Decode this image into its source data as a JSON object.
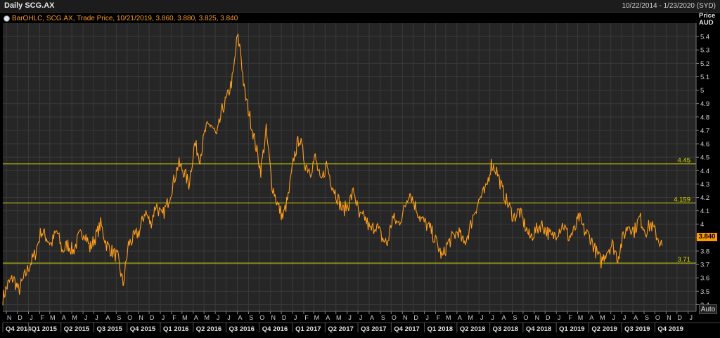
{
  "window": {
    "title": "Daily SCG.AX",
    "date_range": "10/22/2014 - 1/23/2020 (SYD)"
  },
  "legend": {
    "text": "BarOHLC, SCG.AX, Trade Price, 10/21/2019, 3.860, 3.880, 3.825, 3.840"
  },
  "axis": {
    "y_title_line1": "Price",
    "y_title_line2": "AUD",
    "auto_label": "Auto"
  },
  "last_price_label": "3.840",
  "colors": {
    "background": "#000000",
    "plot_background": "#262626",
    "grid": "#3a3a3a",
    "price_line": "#ff9d1a",
    "level_line": "#d6d600",
    "badge": "#ff9900"
  },
  "chart_data": {
    "type": "line",
    "series_name": "SCG.AX",
    "ylim": [
      3.35,
      5.5
    ],
    "y_ticks": [
      3.4,
      3.5,
      3.6,
      3.7,
      3.8,
      3.9,
      4,
      4.1,
      4.2,
      4.3,
      4.4,
      4.5,
      4.6,
      4.7,
      4.8,
      4.9,
      5,
      5.1,
      5.2,
      5.3,
      5.4
    ],
    "y_tick_labels": [
      "3.4",
      "3.5",
      "3.6",
      "3.7",
      "3.8",
      "3.9",
      "4",
      "4.1",
      "4.2",
      "4.3",
      "4.4",
      "4.5",
      "4.6",
      "4.7",
      "4.8",
      "4.9",
      "5",
      "5.1",
      "5.2",
      "5.3",
      "5.4"
    ],
    "grid": true,
    "x_range": [
      "2014-10-22",
      "2020-01-23"
    ],
    "month_ticks": [
      {
        "date": "2014-11-01",
        "label": "N"
      },
      {
        "date": "2014-12-01",
        "label": "D"
      },
      {
        "date": "2015-01-01",
        "label": "J"
      },
      {
        "date": "2015-02-01",
        "label": "F"
      },
      {
        "date": "2015-03-01",
        "label": "M"
      },
      {
        "date": "2015-04-01",
        "label": "A"
      },
      {
        "date": "2015-05-01",
        "label": "M"
      },
      {
        "date": "2015-06-01",
        "label": "J"
      },
      {
        "date": "2015-07-01",
        "label": "J"
      },
      {
        "date": "2015-08-01",
        "label": "A"
      },
      {
        "date": "2015-09-01",
        "label": "S"
      },
      {
        "date": "2015-10-01",
        "label": "O"
      },
      {
        "date": "2015-11-01",
        "label": "N"
      },
      {
        "date": "2015-12-01",
        "label": "D"
      },
      {
        "date": "2016-01-01",
        "label": "J"
      },
      {
        "date": "2016-02-01",
        "label": "F"
      },
      {
        "date": "2016-03-01",
        "label": "M"
      },
      {
        "date": "2016-04-01",
        "label": "A"
      },
      {
        "date": "2016-05-01",
        "label": "M"
      },
      {
        "date": "2016-06-01",
        "label": "J"
      },
      {
        "date": "2016-07-01",
        "label": "J"
      },
      {
        "date": "2016-08-01",
        "label": "A"
      },
      {
        "date": "2016-09-01",
        "label": "S"
      },
      {
        "date": "2016-10-01",
        "label": "O"
      },
      {
        "date": "2016-11-01",
        "label": "N"
      },
      {
        "date": "2016-12-01",
        "label": "D"
      },
      {
        "date": "2017-01-01",
        "label": "J"
      },
      {
        "date": "2017-02-01",
        "label": "F"
      },
      {
        "date": "2017-03-01",
        "label": "M"
      },
      {
        "date": "2017-04-01",
        "label": "A"
      },
      {
        "date": "2017-05-01",
        "label": "M"
      },
      {
        "date": "2017-06-01",
        "label": "J"
      },
      {
        "date": "2017-07-01",
        "label": "J"
      },
      {
        "date": "2017-08-01",
        "label": "A"
      },
      {
        "date": "2017-09-01",
        "label": "S"
      },
      {
        "date": "2017-10-01",
        "label": "O"
      },
      {
        "date": "2017-11-01",
        "label": "N"
      },
      {
        "date": "2017-12-01",
        "label": "D"
      },
      {
        "date": "2018-01-01",
        "label": "J"
      },
      {
        "date": "2018-02-01",
        "label": "F"
      },
      {
        "date": "2018-03-01",
        "label": "M"
      },
      {
        "date": "2018-04-01",
        "label": "A"
      },
      {
        "date": "2018-05-01",
        "label": "M"
      },
      {
        "date": "2018-06-01",
        "label": "J"
      },
      {
        "date": "2018-07-01",
        "label": "J"
      },
      {
        "date": "2018-08-01",
        "label": "A"
      },
      {
        "date": "2018-09-01",
        "label": "S"
      },
      {
        "date": "2018-10-01",
        "label": "O"
      },
      {
        "date": "2018-11-01",
        "label": "N"
      },
      {
        "date": "2018-12-01",
        "label": "D"
      },
      {
        "date": "2019-01-01",
        "label": "J"
      },
      {
        "date": "2019-02-01",
        "label": "F"
      },
      {
        "date": "2019-03-01",
        "label": "M"
      },
      {
        "date": "2019-04-01",
        "label": "A"
      },
      {
        "date": "2019-05-01",
        "label": "M"
      },
      {
        "date": "2019-06-01",
        "label": "J"
      },
      {
        "date": "2019-07-01",
        "label": "J"
      },
      {
        "date": "2019-08-01",
        "label": "A"
      },
      {
        "date": "2019-09-01",
        "label": "S"
      },
      {
        "date": "2019-10-01",
        "label": "O"
      },
      {
        "date": "2019-11-01",
        "label": "N"
      },
      {
        "date": "2019-12-01",
        "label": "D"
      },
      {
        "date": "2020-01-01",
        "label": "J"
      }
    ],
    "quarter_ticks": [
      {
        "date": "2014-10-22",
        "label": "Q4 2014"
      },
      {
        "date": "2015-01-01",
        "label": "Q1 2015"
      },
      {
        "date": "2015-04-01",
        "label": "Q2 2015"
      },
      {
        "date": "2015-07-01",
        "label": "Q3 2015"
      },
      {
        "date": "2015-10-01",
        "label": "Q4 2015"
      },
      {
        "date": "2016-01-01",
        "label": "Q1 2016"
      },
      {
        "date": "2016-04-01",
        "label": "Q2 2016"
      },
      {
        "date": "2016-07-01",
        "label": "Q3 2016"
      },
      {
        "date": "2016-10-01",
        "label": "Q4 2016"
      },
      {
        "date": "2017-01-01",
        "label": "Q1 2017"
      },
      {
        "date": "2017-04-01",
        "label": "Q2 2017"
      },
      {
        "date": "2017-07-01",
        "label": "Q3 2017"
      },
      {
        "date": "2017-10-01",
        "label": "Q4 2017"
      },
      {
        "date": "2018-01-01",
        "label": "Q1 2018"
      },
      {
        "date": "2018-04-01",
        "label": "Q2 2018"
      },
      {
        "date": "2018-07-01",
        "label": "Q3 2018"
      },
      {
        "date": "2018-10-01",
        "label": "Q4 2018"
      },
      {
        "date": "2019-01-01",
        "label": "Q1 2019"
      },
      {
        "date": "2019-04-01",
        "label": "Q2 2019"
      },
      {
        "date": "2019-07-01",
        "label": "Q3 2019"
      },
      {
        "date": "2019-10-01",
        "label": "Q4 2019"
      }
    ],
    "horizontal_levels": [
      {
        "value": 4.45,
        "label": "4.45"
      },
      {
        "value": 4.159,
        "label": "4.159"
      },
      {
        "value": 3.71,
        "label": "3.71"
      }
    ],
    "x": [
      "2014-10-22",
      "2014-11-05",
      "2014-11-20",
      "2014-12-05",
      "2014-12-20",
      "2015-01-05",
      "2015-01-20",
      "2015-02-05",
      "2015-02-20",
      "2015-03-05",
      "2015-03-20",
      "2015-04-05",
      "2015-04-20",
      "2015-05-05",
      "2015-05-20",
      "2015-06-05",
      "2015-06-20",
      "2015-07-05",
      "2015-07-20",
      "2015-08-05",
      "2015-08-20",
      "2015-09-05",
      "2015-09-20",
      "2015-10-05",
      "2015-10-20",
      "2015-11-05",
      "2015-11-20",
      "2015-12-05",
      "2015-12-20",
      "2016-01-05",
      "2016-01-20",
      "2016-02-05",
      "2016-02-20",
      "2016-03-05",
      "2016-03-20",
      "2016-04-05",
      "2016-04-20",
      "2016-05-05",
      "2016-05-20",
      "2016-06-05",
      "2016-06-20",
      "2016-07-05",
      "2016-07-20",
      "2016-08-01",
      "2016-08-10",
      "2016-08-20",
      "2016-09-05",
      "2016-09-20",
      "2016-10-05",
      "2016-10-20",
      "2016-11-05",
      "2016-11-20",
      "2016-12-05",
      "2016-12-20",
      "2017-01-05",
      "2017-01-20",
      "2017-02-05",
      "2017-02-20",
      "2017-03-05",
      "2017-03-20",
      "2017-04-05",
      "2017-04-20",
      "2017-05-05",
      "2017-05-20",
      "2017-06-05",
      "2017-06-20",
      "2017-07-05",
      "2017-07-20",
      "2017-08-05",
      "2017-08-20",
      "2017-09-05",
      "2017-09-20",
      "2017-10-05",
      "2017-10-20",
      "2017-11-05",
      "2017-11-20",
      "2017-12-05",
      "2017-12-20",
      "2018-01-05",
      "2018-01-20",
      "2018-02-05",
      "2018-02-20",
      "2018-03-05",
      "2018-03-20",
      "2018-04-05",
      "2018-04-20",
      "2018-05-05",
      "2018-05-20",
      "2018-06-05",
      "2018-06-20",
      "2018-07-05",
      "2018-07-20",
      "2018-08-05",
      "2018-08-20",
      "2018-09-05",
      "2018-09-20",
      "2018-10-05",
      "2018-10-20",
      "2018-11-05",
      "2018-11-20",
      "2018-12-05",
      "2018-12-20",
      "2019-01-05",
      "2019-01-20",
      "2019-02-05",
      "2019-02-20",
      "2019-03-05",
      "2019-03-20",
      "2019-04-05",
      "2019-04-20",
      "2019-05-05",
      "2019-05-20",
      "2019-06-05",
      "2019-06-20",
      "2019-07-05",
      "2019-07-20",
      "2019-08-05",
      "2019-08-20",
      "2019-09-05",
      "2019-09-20",
      "2019-10-05",
      "2019-10-21"
    ],
    "y": [
      3.45,
      3.55,
      3.6,
      3.5,
      3.6,
      3.7,
      3.78,
      3.95,
      3.9,
      3.85,
      3.95,
      3.8,
      3.85,
      3.8,
      3.9,
      3.95,
      3.82,
      3.9,
      4.0,
      3.85,
      3.8,
      3.75,
      3.55,
      3.85,
      3.9,
      3.95,
      4.1,
      4.0,
      4.15,
      4.05,
      4.15,
      4.3,
      4.45,
      4.4,
      4.3,
      4.6,
      4.5,
      4.7,
      4.75,
      4.65,
      4.85,
      4.95,
      5.1,
      5.4,
      5.3,
      5.0,
      4.8,
      4.6,
      4.4,
      4.7,
      4.3,
      4.15,
      4.05,
      4.2,
      4.5,
      4.65,
      4.45,
      4.4,
      4.5,
      4.3,
      4.45,
      4.3,
      4.2,
      4.1,
      4.15,
      4.25,
      4.05,
      4.05,
      3.95,
      4.0,
      3.9,
      3.85,
      4.05,
      4.0,
      4.1,
      4.25,
      4.15,
      4.05,
      4.0,
      3.95,
      3.85,
      3.75,
      3.85,
      3.9,
      3.95,
      3.85,
      3.95,
      4.1,
      4.2,
      4.25,
      4.45,
      4.4,
      4.25,
      4.15,
      4.05,
      4.1,
      4.0,
      3.9,
      3.95,
      4.0,
      3.95,
      3.9,
      3.95,
      4.0,
      3.9,
      3.95,
      4.05,
      3.95,
      3.9,
      3.8,
      3.72,
      3.8,
      3.85,
      3.75,
      3.9,
      4.0,
      3.95,
      4.05,
      3.95,
      4.0,
      3.92,
      3.84
    ]
  }
}
